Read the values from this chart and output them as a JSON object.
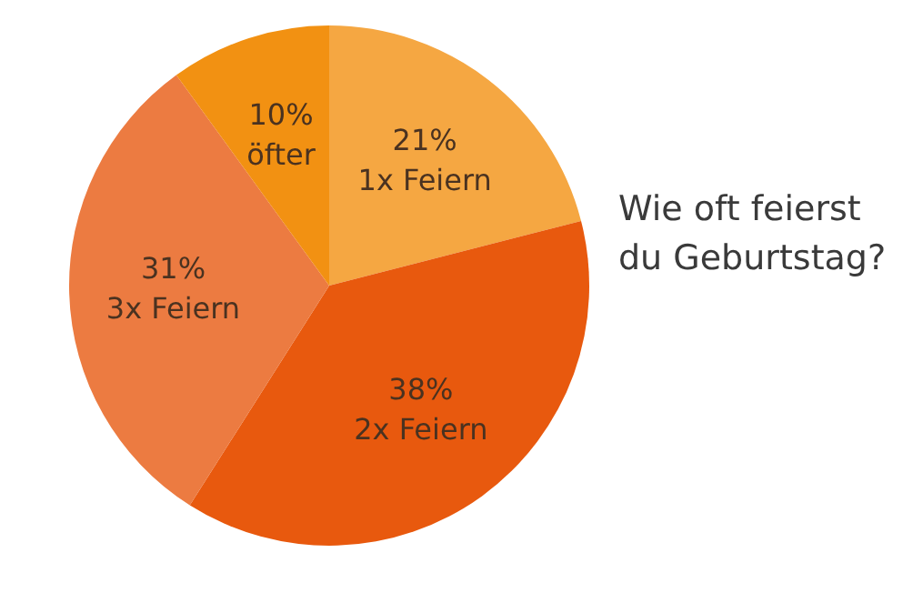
{
  "chart_data": {
    "type": "pie",
    "title": "Wie oft feierst du Geburtstag?",
    "categories": [
      "1x Feiern",
      "2x Feiern",
      "3x Feiern",
      "öfter"
    ],
    "values": [
      21,
      38,
      31,
      10
    ],
    "value_labels": [
      "21%",
      "38%",
      "31%",
      "10%"
    ],
    "colors": [
      "#f5a742",
      "#e8590e",
      "#ec7b41",
      "#f29112"
    ],
    "legend": false
  }
}
